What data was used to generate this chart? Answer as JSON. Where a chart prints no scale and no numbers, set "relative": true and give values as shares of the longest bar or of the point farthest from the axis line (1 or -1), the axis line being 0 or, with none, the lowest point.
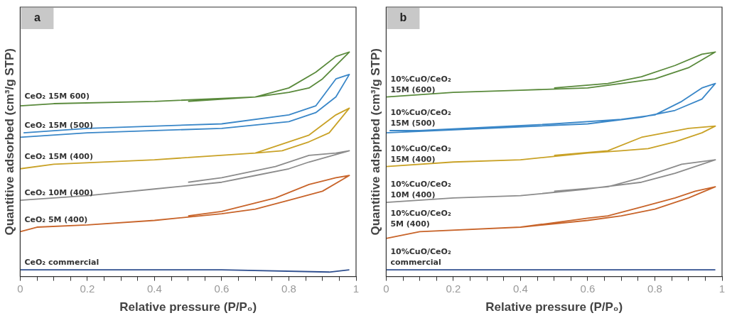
{
  "chart_data": [
    {
      "type": "line",
      "xlabel": "Relative pressure (P/P₀)",
      "ylabel": "Quantitive adsorbed (cm³/g STP)",
      "annotations": [
        "a"
      ],
      "relative": true,
      "legend": false,
      "grid": false,
      "marker": "none",
      "line_style": "solid",
      "xlim": [
        0,
        1
      ],
      "xticks": [
        0,
        {
          "value": 0.05,
          "label": null
        },
        {
          "value": 0.1,
          "label": null
        },
        {
          "value": 0.15,
          "label": null
        },
        0.2,
        {
          "value": 0.25,
          "label": null
        },
        {
          "value": 0.3,
          "label": null
        },
        {
          "value": 0.35,
          "label": null
        },
        0.4,
        {
          "value": 0.45,
          "label": null
        },
        {
          "value": 0.5,
          "label": null
        },
        {
          "value": 0.55,
          "label": null
        },
        0.6,
        {
          "value": 0.65,
          "label": null
        },
        {
          "value": 0.7,
          "label": null
        },
        {
          "value": 0.75,
          "label": null
        },
        0.8,
        {
          "value": 0.85,
          "label": null
        },
        {
          "value": 0.9,
          "label": null
        },
        {
          "value": 0.95,
          "label": null
        },
        1
      ],
      "series": [
        {
          "name": "CeO₂ 15M 600)",
          "color": "#5a8a3c",
          "x": [
            0,
            0.1,
            0.4,
            0.7,
            0.8,
            0.86,
            0.9,
            0.98,
            0.94,
            0.88,
            0.8,
            0.7,
            0.5
          ],
          "values": [
            0.76,
            0.77,
            0.78,
            0.8,
            0.82,
            0.84,
            0.88,
            1,
            0.98,
            0.91,
            0.84,
            0.8,
            0.78
          ]
        },
        {
          "name": "CeO₂ 15M (500)",
          "color": "#3a87c8",
          "x": [
            0,
            0.2,
            0.6,
            0.8,
            0.88,
            0.94,
            0.98,
            0.94,
            0.88,
            0.8,
            0.6,
            0.2,
            0.01
          ],
          "values": [
            0.62,
            0.64,
            0.66,
            0.69,
            0.73,
            0.8,
            0.9,
            0.88,
            0.76,
            0.72,
            0.68,
            0.66,
            0.64
          ]
        },
        {
          "name": "CeO₂ 15M (400)",
          "color": "#c9a227",
          "x": [
            0,
            0.1,
            0.4,
            0.7,
            0.78,
            0.86,
            0.92,
            0.98,
            0.94,
            0.86,
            0.7,
            0.5
          ],
          "values": [
            0.48,
            0.5,
            0.52,
            0.55,
            0.56,
            0.6,
            0.64,
            0.75,
            0.72,
            0.63,
            0.55,
            0.53
          ]
        },
        {
          "name": "CeO₂ 10M (400)",
          "color": "#8c8c8c",
          "x": [
            0,
            0.2,
            0.4,
            0.6,
            0.7,
            0.8,
            0.86,
            0.98,
            0.94,
            0.86,
            0.76,
            0.6,
            0.5
          ],
          "values": [
            0.34,
            0.36,
            0.39,
            0.42,
            0.45,
            0.48,
            0.51,
            0.56,
            0.55,
            0.54,
            0.49,
            0.44,
            0.42
          ]
        },
        {
          "name": "CeO₂ 5M (400)",
          "color": "#c8642a",
          "x": [
            0,
            0.05,
            0.2,
            0.4,
            0.6,
            0.7,
            0.8,
            0.9,
            0.98,
            0.94,
            0.86,
            0.76,
            0.6,
            0.5
          ],
          "values": [
            0.2,
            0.22,
            0.23,
            0.25,
            0.28,
            0.3,
            0.34,
            0.38,
            0.45,
            0.44,
            0.41,
            0.35,
            0.29,
            0.27
          ]
        },
        {
          "name": "CeO₂ commercial",
          "color": "#2f4f8f",
          "x": [
            0,
            0.15,
            0.6,
            0.92,
            0.98
          ],
          "values": [
            0.03,
            0.03,
            0.03,
            0.02,
            0.03
          ]
        }
      ]
    },
    {
      "type": "line",
      "xlabel": "Relative pressure (P/P₀)",
      "ylabel": "Quantitive adsprbed (cm³/g STP)",
      "annotations": [
        "b"
      ],
      "relative": true,
      "legend": false,
      "grid": false,
      "marker": "none",
      "line_style": "solid",
      "xlim": [
        0,
        1
      ],
      "xticks": [
        0,
        {
          "value": 0.05,
          "label": null
        },
        {
          "value": 0.1,
          "label": null
        },
        {
          "value": 0.15,
          "label": null
        },
        0.2,
        {
          "value": 0.25,
          "label": null
        },
        {
          "value": 0.3,
          "label": null
        },
        {
          "value": 0.35,
          "label": null
        },
        0.4,
        {
          "value": 0.45,
          "label": null
        },
        {
          "value": 0.5,
          "label": null
        },
        {
          "value": 0.55,
          "label": null
        },
        0.6,
        {
          "value": 0.65,
          "label": null
        },
        {
          "value": 0.7,
          "label": null
        },
        {
          "value": 0.75,
          "label": null
        },
        0.8,
        {
          "value": 0.85,
          "label": null
        },
        {
          "value": 0.9,
          "label": null
        },
        {
          "value": 0.95,
          "label": null
        },
        1
      ],
      "series": [
        {
          "name": "10%CuO/CeO₂\n15M (600)",
          "color": "#5a8a3c",
          "x": [
            0,
            0.2,
            0.4,
            0.6,
            0.7,
            0.8,
            0.9,
            0.98,
            0.94,
            0.86,
            0.76,
            0.66,
            0.5
          ],
          "values": [
            0.8,
            0.82,
            0.83,
            0.84,
            0.86,
            0.88,
            0.93,
            1,
            0.99,
            0.94,
            0.89,
            0.86,
            0.84
          ]
        },
        {
          "name": "10%CuO/CeO₂\n15M (500)",
          "color": "#3a87c8",
          "x": [
            0,
            0.3,
            0.6,
            0.76,
            0.86,
            0.94,
            0.98,
            0.94,
            0.88,
            0.8,
            0.7,
            0.5,
            0.1,
            0.01
          ],
          "values": [
            0.64,
            0.66,
            0.68,
            0.71,
            0.74,
            0.79,
            0.86,
            0.84,
            0.78,
            0.72,
            0.7,
            0.68,
            0.65,
            0.65
          ]
        },
        {
          "name": "10%CuO/CeO₂\n15M (400)",
          "color": "#c9a227",
          "x": [
            0,
            0.2,
            0.4,
            0.6,
            0.7,
            0.78,
            0.86,
            0.94,
            0.98,
            0.9,
            0.76,
            0.66,
            0.5
          ],
          "values": [
            0.49,
            0.51,
            0.52,
            0.55,
            0.56,
            0.57,
            0.6,
            0.64,
            0.67,
            0.66,
            0.62,
            0.56,
            0.54
          ]
        },
        {
          "name": "10%CuO/CeO₂\n10M (400)",
          "color": "#8c8c8c",
          "x": [
            0,
            0.2,
            0.4,
            0.6,
            0.76,
            0.86,
            0.98,
            0.88,
            0.76,
            0.66,
            0.5
          ],
          "values": [
            0.33,
            0.35,
            0.36,
            0.39,
            0.42,
            0.46,
            0.52,
            0.5,
            0.44,
            0.4,
            0.38
          ]
        },
        {
          "name": "10%CuO/CeO₂\n5M (400)",
          "color": "#c8642a",
          "x": [
            0,
            0.1,
            0.4,
            0.6,
            0.7,
            0.8,
            0.9,
            0.98,
            0.92,
            0.86,
            0.76,
            0.66,
            0.6,
            0.4
          ],
          "values": [
            0.17,
            0.2,
            0.22,
            0.25,
            0.27,
            0.3,
            0.35,
            0.4,
            0.38,
            0.35,
            0.31,
            0.27,
            0.26,
            0.22
          ]
        },
        {
          "name": "10%CuO/CeO₂\ncommercial",
          "color": "#2f4f8f",
          "x": [
            0,
            0.4,
            0.9,
            0.98
          ],
          "values": [
            0.03,
            0.03,
            0.03,
            0.03
          ]
        }
      ]
    }
  ]
}
